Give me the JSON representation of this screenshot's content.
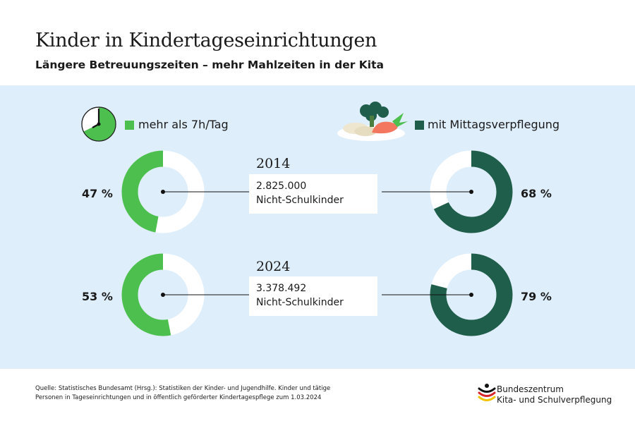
{
  "title": "Kinder in Kindertageseinrichtungen",
  "subtitle": "Längere Betreuungszeiten – mehr Mahlzeiten in der Kita",
  "colors": {
    "green": "#4cbf4f",
    "dark_green": "#1f5e4a",
    "panel": "#deeefb",
    "white": "#ffffff"
  },
  "icons": {
    "left": "clock-icon",
    "right": "food-plate-icon"
  },
  "chart_data": {
    "type": "donut",
    "legend": [
      "mehr als 7h/Tag",
      "mit Mittagsverpflegung"
    ],
    "rows": [
      {
        "year": "2014",
        "count": "2.825.000",
        "count_label": "Nicht-Schulkinder",
        "left_value": 47,
        "left_label": "47 %",
        "right_value": 68,
        "right_label": "68 %"
      },
      {
        "year": "2024",
        "count": "3.378.492",
        "count_label": "Nicht-Schulkinder",
        "left_value": 53,
        "left_label": "53 %",
        "right_value": 79,
        "right_label": "79 %"
      }
    ]
  },
  "source": {
    "line1": "Quelle: Statistisches Bundesamt (Hrsg.): Statistiken der Kinder- und Jugendhilfe. Kinder und tätige",
    "line2": "Personen in Tageseinrichtungen und in öffentlich geförderter Kindertagespflege zum 1.03.2024"
  },
  "brand": {
    "line1": "Bundeszentrum",
    "line2": "Kita- und Schulverpflegung"
  }
}
